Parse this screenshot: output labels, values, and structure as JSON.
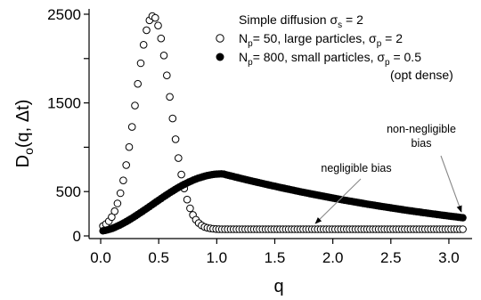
{
  "chart_data": {
    "type": "scatter",
    "xlabel": "q",
    "ylabel": {
      "main": "D",
      "sub": "o",
      "rest": "(q, Δt)"
    },
    "xlim": [
      -0.1,
      3.2
    ],
    "ylim": [
      -30,
      2560
    ],
    "x_ticks": [
      0.0,
      0.5,
      1.0,
      1.5,
      2.0,
      2.5,
      3.0
    ],
    "x_tick_labels": [
      "0.0",
      "0.5",
      "1.0",
      "1.5",
      "2.0",
      "2.5",
      "3.0"
    ],
    "y_ticks": [
      0,
      500,
      1500,
      2500
    ],
    "y_tick_labels": [
      "0",
      "500",
      "1500",
      "2500"
    ],
    "y_minor_ticks": [
      1000,
      2000
    ],
    "grid": false,
    "legend_position": "top-right",
    "legend": {
      "title": {
        "text": "Simple diffusion σ",
        "sub": "s",
        "rest": " = 2"
      },
      "lines": [
        {
          "symbol": "open-circle",
          "parts": [
            [
              "N",
              "normal"
            ],
            [
              "p",
              "sub"
            ],
            [
              "= 50, large particles, σ",
              "normal"
            ],
            [
              "p",
              "sub"
            ],
            [
              " = 2",
              "normal"
            ]
          ]
        },
        {
          "symbol": "filled-circle",
          "parts": [
            [
              "N",
              "normal"
            ],
            [
              "p",
              "sub"
            ],
            [
              "= 800, small particles, σ",
              "normal"
            ],
            [
              "p",
              "sub"
            ],
            [
              " = 0.5",
              "normal"
            ]
          ]
        },
        {
          "symbol": "none",
          "parts": [
            [
              "(opt dense)",
              "normal"
            ]
          ]
        }
      ]
    },
    "annotations": [
      {
        "lines": [
          "non-negligible",
          "bias"
        ],
        "target": [
          3.1,
          210
        ]
      },
      {
        "lines": [
          "negligible bias"
        ],
        "target": [
          1.85,
          80
        ]
      }
    ],
    "series": [
      {
        "marker": "open-circle",
        "sampling": {
          "start": 0.02,
          "step": 0.025,
          "count": 125
        },
        "peak_x": 0.45,
        "peak_y": 2480,
        "width": 0.21,
        "baseline": 75
      },
      {
        "marker": "filled-circle",
        "sampling": {
          "start": 0.02,
          "step": 0.02,
          "count": 156
        },
        "peak_x": 1.05,
        "peak_y": 700,
        "end_x": 3.12,
        "end_y": 205,
        "start_y": 55
      }
    ]
  }
}
